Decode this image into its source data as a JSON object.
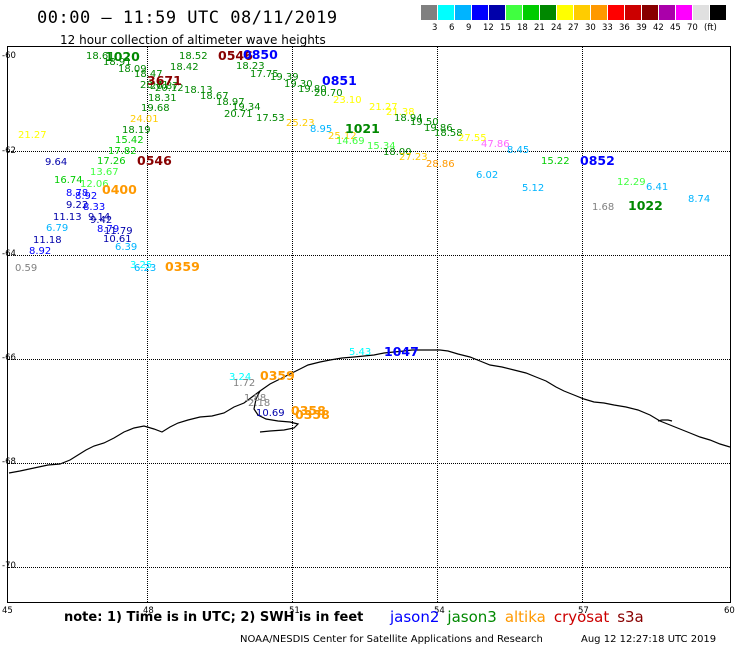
{
  "header": {
    "title": "00:00 — 11:59 UTC 08/11/2019",
    "subtitle": "12 hour collection of altimeter wave heights"
  },
  "legend": {
    "colors": [
      "#808080",
      "#00ffff",
      "#00b4ff",
      "#0000ff",
      "#0000aa",
      "#40ff40",
      "#00cc00",
      "#008800",
      "#ffff00",
      "#ffcc00",
      "#ff9900",
      "#ff0000",
      "#cc0000",
      "#880000",
      "#aa00aa",
      "#ff00ff",
      "#e0e0e0",
      "#000000"
    ],
    "ticks": [
      "3",
      "6",
      "9",
      "12",
      "15",
      "18",
      "21",
      "24",
      "27",
      "30",
      "33",
      "36",
      "39",
      "42",
      "45",
      "70",
      "(ft)"
    ]
  },
  "axes": {
    "lat_labels": [
      "-60",
      "-62",
      "-64",
      "-66",
      "-68",
      "-70"
    ],
    "lon_labels": [
      "45",
      "48",
      "51",
      "54",
      "57",
      "60"
    ]
  },
  "observations": [
    {
      "t": "18.61",
      "c": "#008800"
    },
    {
      "t": "18.91",
      "c": "#008800"
    },
    {
      "t": "18.09",
      "c": "#008800"
    },
    {
      "t": "18.47",
      "c": "#008800"
    },
    {
      "t": "18.52",
      "c": "#008800"
    },
    {
      "t": "18.42",
      "c": "#008800"
    },
    {
      "t": "18.23",
      "c": "#008800"
    },
    {
      "t": "20.71",
      "c": "#008800"
    },
    {
      "t": "20.87",
      "c": "#008800"
    },
    {
      "t": "20.12",
      "c": "#008800"
    },
    {
      "t": "18.13",
      "c": "#008800"
    },
    {
      "t": "18.31",
      "c": "#008800"
    },
    {
      "t": "19.68",
      "c": "#008800"
    },
    {
      "t": "18.67",
      "c": "#008800"
    },
    {
      "t": "18.97",
      "c": "#008800"
    },
    {
      "t": "19.34",
      "c": "#008800"
    },
    {
      "t": "20.71",
      "c": "#008800"
    },
    {
      "t": "17.53",
      "c": "#008800"
    },
    {
      "t": "17.75",
      "c": "#008800"
    },
    {
      "t": "19.39",
      "c": "#008800"
    },
    {
      "t": "19.30",
      "c": "#008800"
    },
    {
      "t": "19.80",
      "c": "#008800"
    },
    {
      "t": "20.70",
      "c": "#008800"
    },
    {
      "t": "24.01",
      "c": "#ffcc00"
    },
    {
      "t": "18.19",
      "c": "#008800"
    },
    {
      "t": "15.42",
      "c": "#00cc00"
    },
    {
      "t": "17.82",
      "c": "#00cc00"
    },
    {
      "t": "17.26",
      "c": "#00cc00"
    },
    {
      "t": "13.67",
      "c": "#40ff40"
    },
    {
      "t": "16.74",
      "c": "#00cc00"
    },
    {
      "t": "12.06",
      "c": "#40ff40"
    },
    {
      "t": "21.27",
      "c": "#ffff00"
    },
    {
      "t": "9.64",
      "c": "#0000aa"
    },
    {
      "t": "8.78",
      "c": "#0000ff"
    },
    {
      "t": "8.92",
      "c": "#0000ff"
    },
    {
      "t": "9.22",
      "c": "#0000aa"
    },
    {
      "t": "8.33",
      "c": "#0000ff"
    },
    {
      "t": "11.13",
      "c": "#0000aa"
    },
    {
      "t": "9.14",
      "c": "#0000aa"
    },
    {
      "t": "9.42",
      "c": "#0000aa"
    },
    {
      "t": "6.79",
      "c": "#00b4ff"
    },
    {
      "t": "8.79",
      "c": "#0000ff"
    },
    {
      "t": "11.79",
      "c": "#0000aa"
    },
    {
      "t": "11.18",
      "c": "#0000aa"
    },
    {
      "t": "10.61",
      "c": "#0000aa"
    },
    {
      "t": "8.92",
      "c": "#0000ff"
    },
    {
      "t": "6.39",
      "c": "#00b4ff"
    },
    {
      "t": "0.59",
      "c": "#808080"
    },
    {
      "t": "3.25",
      "c": "#00ffff"
    },
    {
      "t": "6.23",
      "c": "#00b4ff"
    },
    {
      "t": "23.10",
      "c": "#ffff00"
    },
    {
      "t": "21.27",
      "c": "#ffff00"
    },
    {
      "t": "21.38",
      "c": "#ffff00"
    },
    {
      "t": "18.94",
      "c": "#008800"
    },
    {
      "t": "19.50",
      "c": "#008800"
    },
    {
      "t": "19.86",
      "c": "#008800"
    },
    {
      "t": "18.58",
      "c": "#008800"
    },
    {
      "t": "25.23",
      "c": "#ffcc00"
    },
    {
      "t": "8.95",
      "c": "#00b4ff"
    },
    {
      "t": "25.12",
      "c": "#ffcc00"
    },
    {
      "t": "14.69",
      "c": "#40ff40"
    },
    {
      "t": "15.34",
      "c": "#40ff40"
    },
    {
      "t": "18.00",
      "c": "#008800"
    },
    {
      "t": "27.23",
      "c": "#ffcc00"
    },
    {
      "t": "28.86",
      "c": "#ff9900"
    },
    {
      "t": "27.55",
      "c": "#ffff00"
    },
    {
      "t": "47.86",
      "c": "#ff66ff"
    },
    {
      "t": "8.45",
      "c": "#00b4ff"
    },
    {
      "t": "15.22",
      "c": "#00cc00"
    },
    {
      "t": "6.02",
      "c": "#00b4ff"
    },
    {
      "t": "5.12",
      "c": "#00b4ff"
    },
    {
      "t": "12.29",
      "c": "#40ff40"
    },
    {
      "t": "6.41",
      "c": "#00b4ff"
    },
    {
      "t": "1.68",
      "c": "#808080"
    },
    {
      "t": "8.74",
      "c": "#00b4ff"
    },
    {
      "t": "5.43",
      "c": "#00ffff"
    },
    {
      "t": "3.24",
      "c": "#00ffff"
    },
    {
      "t": "1.72",
      "c": "#808080"
    },
    {
      "t": "1.88",
      "c": "#808080"
    },
    {
      "t": "2.18",
      "c": "#808080"
    },
    {
      "t": "10.69",
      "c": "#0000aa"
    }
  ],
  "track_labels": [
    {
      "t": "1020",
      "c": "#008800"
    },
    {
      "t": "0546",
      "c": "#880000"
    },
    {
      "t": "0850",
      "c": "#0000ff"
    },
    {
      "t": "0851",
      "c": "#0000ff"
    },
    {
      "t": "1021",
      "c": "#008800"
    },
    {
      "t": "0546",
      "c": "#880000"
    },
    {
      "t": "0400",
      "c": "#ff9900"
    },
    {
      "t": "0852",
      "c": "#0000ff"
    },
    {
      "t": "1022",
      "c": "#008800"
    },
    {
      "t": "0359",
      "c": "#ff9900"
    },
    {
      "t": "1047",
      "c": "#0000ff"
    },
    {
      "t": "0359",
      "c": "#ff9900"
    },
    {
      "t": "0358",
      "c": "#ff9900"
    },
    {
      "t": "0358",
      "c": "#ff9900"
    },
    {
      "t": "3671",
      "c": "#880000"
    }
  ],
  "note": "note: 1) Time is in UTC; 2) SWH is in feet",
  "satellites": [
    {
      "name": "jason2",
      "c": "#0000ff"
    },
    {
      "name": "jason3",
      "c": "#008800"
    },
    {
      "name": "altika",
      "c": "#ff9900"
    },
    {
      "name": "cryosat",
      "c": "#cc0000"
    },
    {
      "name": "s3a",
      "c": "#880000"
    }
  ],
  "footer": {
    "credit": "NOAA/NESDIS Center for Satellite Applications and Research",
    "timestamp": "Aug 12 12:27:18 UTC 2019"
  }
}
